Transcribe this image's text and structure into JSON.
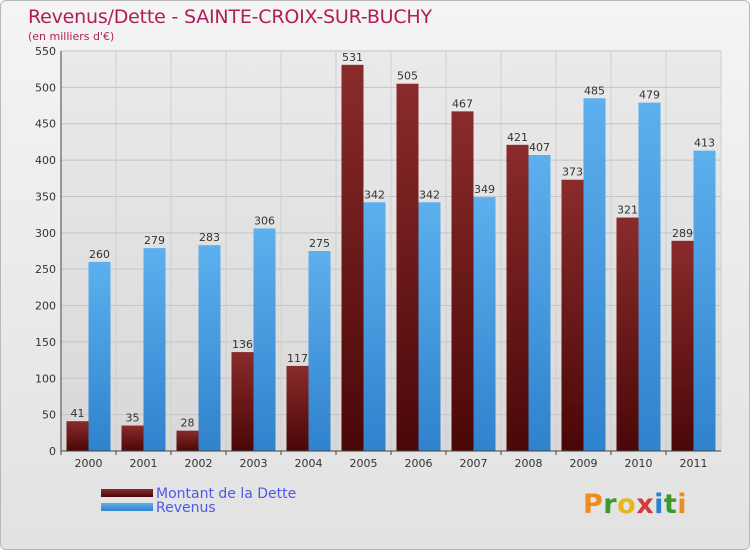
{
  "chart_data": {
    "type": "bar",
    "title": "Revenus/Dette - SAINTE-CROIX-SUR-BUCHY",
    "subtitle": "(en milliers d'€)",
    "categories": [
      "2000",
      "2001",
      "2002",
      "2003",
      "2004",
      "2005",
      "2006",
      "2007",
      "2008",
      "2009",
      "2010",
      "2011"
    ],
    "series": [
      {
        "name": "Montant de la Dette",
        "color": "#6b1a1a",
        "values": [
          41,
          35,
          28,
          136,
          117,
          531,
          505,
          467,
          421,
          373,
          321,
          289
        ]
      },
      {
        "name": "Revenus",
        "color": "#4a9fe0",
        "values": [
          260,
          279,
          283,
          306,
          275,
          342,
          342,
          349,
          407,
          485,
          479,
          413
        ]
      }
    ],
    "ylim": [
      0,
      550
    ],
    "yticks": [
      0,
      50,
      100,
      150,
      200,
      250,
      300,
      350,
      400,
      450,
      500,
      550
    ],
    "xlabel": "",
    "ylabel": "",
    "grid": true,
    "legend_position": "bottom-left"
  },
  "logo": {
    "letters": [
      "P",
      "r",
      "o",
      "x",
      "i",
      "t",
      "i"
    ],
    "colors": [
      "#f28b1e",
      "#3a9a2e",
      "#e8b51a",
      "#d23c3c",
      "#2f7fd0",
      "#3a9a2e",
      "#f28b1e"
    ]
  }
}
